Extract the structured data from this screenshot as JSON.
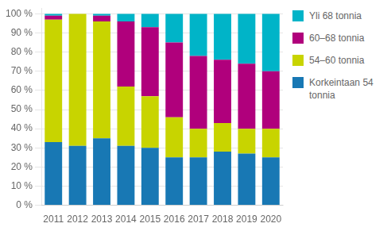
{
  "chart_data": {
    "type": "bar",
    "stacked": true,
    "categories": [
      "2011",
      "2012",
      "2013",
      "2014",
      "2015",
      "2016",
      "2017",
      "2018",
      "2019",
      "2020"
    ],
    "series": [
      {
        "name": "Korkeintaan 54\ntonnia",
        "color": "#1878b4",
        "values": [
          33,
          31,
          35,
          31,
          30,
          25,
          25,
          28,
          27,
          25
        ]
      },
      {
        "name": "54–60 tonnia",
        "color": "#c8d400",
        "values": [
          64,
          69,
          61,
          31,
          27,
          21,
          15,
          15,
          13,
          15
        ]
      },
      {
        "name": "60–68 tonnia",
        "color": "#b0007c",
        "values": [
          2,
          0,
          3,
          34,
          36,
          39,
          38,
          33,
          34,
          30
        ]
      },
      {
        "name": "Yli 68 tonnia",
        "color": "#00b4c8",
        "values": [
          1,
          0,
          1,
          4,
          7,
          15,
          22,
          24,
          26,
          30
        ]
      }
    ],
    "ylim": [
      0,
      103
    ],
    "yticks": [
      {
        "value": 0,
        "label": "0 %"
      },
      {
        "value": 10,
        "label": "10 %"
      },
      {
        "value": 20,
        "label": "20 %"
      },
      {
        "value": 30,
        "label": "30 %"
      },
      {
        "value": 40,
        "label": "40 %"
      },
      {
        "value": 50,
        "label": "50 %"
      },
      {
        "value": 60,
        "label": "60 %"
      },
      {
        "value": 70,
        "label": "70 %"
      },
      {
        "value": 80,
        "label": "80 %"
      },
      {
        "value": 90,
        "label": "90 %"
      },
      {
        "value": 100,
        "label": "100 %"
      }
    ],
    "grid": true,
    "legend": "right"
  }
}
